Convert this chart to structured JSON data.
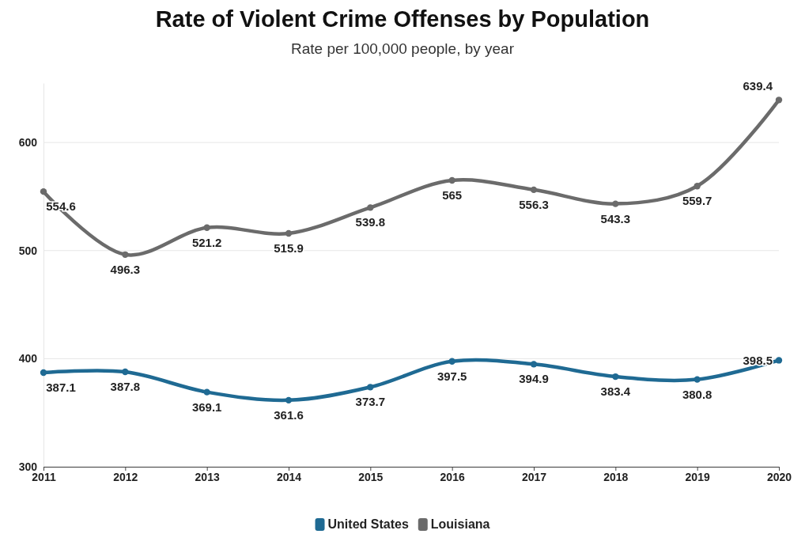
{
  "chart_data": {
    "type": "line",
    "title": "Rate of Violent Crime Offenses by Population",
    "subtitle": "Rate per 100,000 people, by year",
    "x": [
      2011,
      2012,
      2013,
      2014,
      2015,
      2016,
      2017,
      2018,
      2019,
      2020
    ],
    "series": [
      {
        "name": "United States",
        "color": "#1f6a93",
        "values": [
          387.1,
          387.8,
          369.1,
          361.6,
          373.7,
          397.5,
          394.9,
          383.4,
          380.8,
          398.5
        ]
      },
      {
        "name": "Louisiana",
        "color": "#6b6b6b",
        "values": [
          554.6,
          496.3,
          521.2,
          515.9,
          539.8,
          565,
          556.3,
          543.3,
          559.7,
          639.4
        ]
      }
    ],
    "xlim": [
      2011,
      2020
    ],
    "xticks": [
      2011,
      2012,
      2013,
      2014,
      2015,
      2016,
      2017,
      2018,
      2019,
      2020
    ],
    "ylim": [
      300,
      655
    ],
    "yticks": [
      300,
      400,
      500,
      600
    ],
    "grid": "y",
    "legend": "bottom",
    "marker": "circle",
    "line_style": "solid",
    "data_labels": true
  }
}
